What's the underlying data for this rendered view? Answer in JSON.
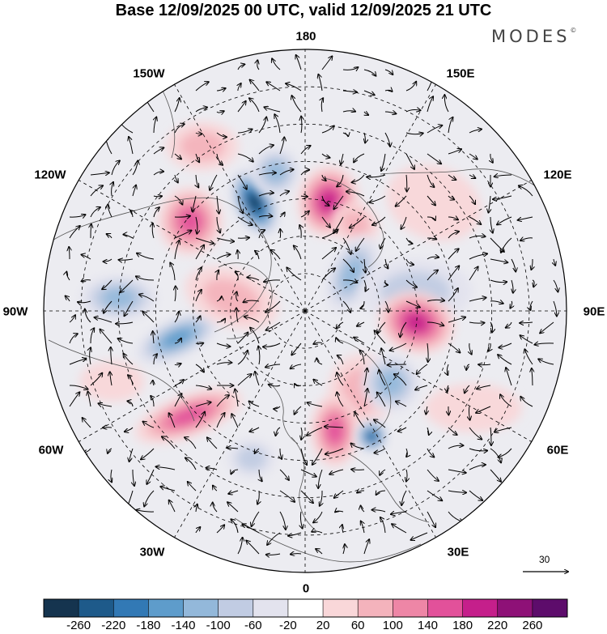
{
  "title": "Base 12/09/2025 00 UTC, valid 12/09/2025 21 UTC",
  "brand": {
    "name": "MODES",
    "mark": "©"
  },
  "longitude_labels": {
    "lon_180": "180",
    "lon_150e": "150E",
    "lon_120e": "120E",
    "lon_90e": "90E",
    "lon_60e": "60E",
    "lon_30e": "30E",
    "lon_0": "0",
    "lon_30w": "30W",
    "lon_60w": "60W",
    "lon_90w": "90W",
    "lon_120w": "120W",
    "lon_150w": "150W"
  },
  "reference_vector": {
    "label": "30"
  },
  "colorbar": {
    "colors": [
      "#15344f",
      "#1e5a8a",
      "#3279b5",
      "#5e9ccb",
      "#93b8da",
      "#c1cce3",
      "#e3e3ee",
      "#ffffff",
      "#f9d7d9",
      "#f4b3bc",
      "#ee86a6",
      "#e2519a",
      "#c51f8b",
      "#8e1177",
      "#5d0c6b"
    ],
    "tick_labels": [
      "-260",
      "-220",
      "-180",
      "-140",
      "-100",
      "-60",
      "-20",
      "20",
      "60",
      "100",
      "140",
      "180",
      "220",
      "260"
    ]
  },
  "field_anomalies": [
    {
      "lon": -155,
      "lat": 58,
      "value": -280,
      "sx": 26,
      "sy": 44,
      "rot": -25
    },
    {
      "lon": -168,
      "lat": 52,
      "value": -120,
      "sx": 30,
      "sy": 30,
      "rot": 0
    },
    {
      "lon": 168,
      "lat": 60,
      "value": 200,
      "sx": 38,
      "sy": 44,
      "rot": 10
    },
    {
      "lon": 150,
      "lat": 63,
      "value": 70,
      "sx": 30,
      "sy": 25,
      "rot": 30
    },
    {
      "lon": -128,
      "lat": 51,
      "value": 160,
      "sx": 40,
      "sy": 42,
      "rot": 0
    },
    {
      "lon": -148,
      "lat": 38,
      "value": 60,
      "sx": 45,
      "sy": 30,
      "rot": 0
    },
    {
      "lon": 130,
      "lat": 45,
      "value": 50,
      "sx": 60,
      "sy": 45,
      "rot": 20
    },
    {
      "lon": 128,
      "lat": 74,
      "value": -110,
      "sx": 28,
      "sy": 50,
      "rot": 25
    },
    {
      "lon": 100,
      "lat": 60,
      "value": -60,
      "sx": 70,
      "sy": 40,
      "rot": 0
    },
    {
      "lon": 84,
      "lat": 60,
      "value": 200,
      "sx": 48,
      "sy": 38,
      "rot": 15
    },
    {
      "lon": 35,
      "lat": 64,
      "value": 90,
      "sx": 40,
      "sy": 45,
      "rot": 0
    },
    {
      "lon": 50,
      "lat": 60,
      "value": -110,
      "sx": 36,
      "sy": 36,
      "rot": 0
    },
    {
      "lon": 14,
      "lat": 57,
      "value": 160,
      "sx": 30,
      "sy": 45,
      "rot": 0
    },
    {
      "lon": 28,
      "lat": 52,
      "value": -220,
      "sx": 20,
      "sy": 20,
      "rot": 0
    },
    {
      "lon": -48,
      "lat": 48,
      "value": 150,
      "sx": 70,
      "sy": 26,
      "rot": -20
    },
    {
      "lon": -78,
      "lat": 55,
      "value": -150,
      "sx": 56,
      "sy": 24,
      "rot": -25
    },
    {
      "lon": -94,
      "lat": 40,
      "value": -120,
      "sx": 48,
      "sy": 28,
      "rot": 0
    },
    {
      "lon": -100,
      "lat": 70,
      "value": 80,
      "sx": 60,
      "sy": 35,
      "rot": 20
    },
    {
      "lon": -20,
      "lat": 48,
      "value": -60,
      "sx": 30,
      "sy": 24,
      "rot": 0
    },
    {
      "lon": 60,
      "lat": 38,
      "value": 50,
      "sx": 60,
      "sy": 30,
      "rot": 0
    },
    {
      "lon": -70,
      "lat": 35,
      "value": 40,
      "sx": 40,
      "sy": 25,
      "rot": 0
    }
  ]
}
